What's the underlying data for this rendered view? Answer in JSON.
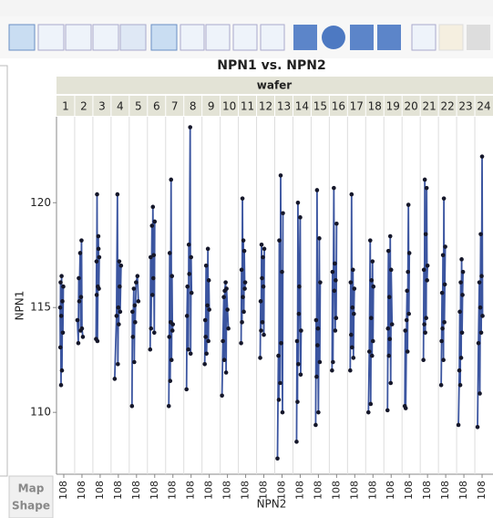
{
  "chart_data": {
    "type": "line",
    "title": "NPN1 vs. NPN2",
    "facet_label": "wafer",
    "x_label": "NPN2",
    "y_label": "NPN1",
    "side_panel": [
      "Map",
      "Shape"
    ],
    "line_color": "#3b55a0",
    "point_color": "#15172a",
    "ylim": [
      107.05,
      124.1
    ],
    "yticks": [
      110,
      115,
      120
    ],
    "xlim": [
      107.2,
      109.2
    ],
    "xticks": [
      108
    ],
    "panels": [
      {
        "name": "1",
        "x": [
          107.6,
          107.62,
          107.65,
          107.7,
          107.72,
          107.76,
          107.8,
          107.85,
          107.9,
          107.95
        ],
        "y": [
          115.0,
          113.1,
          116.2,
          111.3,
          114.6,
          116.5,
          112.0,
          115.3,
          113.8,
          116.0
        ]
      },
      {
        "name": "2",
        "x": [
          107.5,
          107.6,
          107.65,
          107.7,
          107.8,
          107.85,
          107.9,
          107.95,
          108.0,
          108.1
        ],
        "y": [
          114.4,
          113.3,
          116.4,
          115.3,
          117.6,
          113.9,
          115.5,
          118.2,
          114.0,
          113.6
        ]
      },
      {
        "name": "3",
        "x": [
          107.55,
          107.6,
          107.62,
          107.66,
          107.7,
          107.75,
          107.8,
          107.82,
          107.86,
          107.9
        ],
        "y": [
          113.5,
          117.2,
          115.6,
          120.4,
          113.4,
          116.0,
          118.4,
          117.8,
          115.9,
          117.4
        ]
      },
      {
        "name": "4",
        "x": [
          107.6,
          107.8,
          107.9,
          107.95,
          108.0,
          108.05,
          108.1,
          108.15,
          108.2,
          108.3
        ],
        "y": [
          111.6,
          114.6,
          120.4,
          112.3,
          115.0,
          114.2,
          117.2,
          116.0,
          114.8,
          117.0
        ]
      },
      {
        "name": "5",
        "x": [
          107.5,
          107.55,
          107.6,
          107.7,
          107.75,
          107.8,
          107.85,
          107.95,
          108.1,
          108.2
        ],
        "y": [
          110.3,
          114.8,
          113.6,
          115.9,
          112.4,
          115.1,
          114.3,
          116.2,
          116.5,
          115.3
        ]
      },
      {
        "name": "6",
        "x": [
          107.5,
          107.55,
          107.6,
          107.7,
          107.75,
          107.8,
          107.85,
          107.9,
          107.95,
          108.0
        ],
        "y": [
          113.0,
          117.4,
          114.0,
          118.9,
          115.6,
          119.8,
          116.4,
          117.5,
          113.8,
          119.1
        ]
      },
      {
        "name": "7",
        "x": [
          107.55,
          107.6,
          107.65,
          107.7,
          107.75,
          107.8,
          107.85,
          107.9,
          107.95,
          108.0
        ],
        "y": [
          110.3,
          113.6,
          117.6,
          111.5,
          114.3,
          121.1,
          112.5,
          116.5,
          113.9,
          114.2
        ]
      },
      {
        "name": "8",
        "x": [
          107.5,
          107.55,
          107.6,
          107.7,
          107.75,
          107.8,
          107.9,
          107.95,
          108.0,
          108.05
        ],
        "y": [
          111.1,
          114.6,
          116.0,
          113.0,
          118.0,
          116.6,
          123.6,
          112.8,
          117.4,
          115.7
        ]
      },
      {
        "name": "9",
        "x": [
          107.5,
          107.55,
          107.6,
          107.65,
          107.7,
          107.8,
          107.85,
          107.9,
          107.95,
          108.0
        ],
        "y": [
          112.3,
          114.4,
          113.6,
          117.0,
          112.8,
          115.1,
          117.8,
          113.4,
          116.3,
          114.9
        ]
      },
      {
        "name": "10",
        "x": [
          107.4,
          107.5,
          107.6,
          107.65,
          107.7,
          107.8,
          107.85,
          107.9,
          108.0,
          108.1
        ],
        "y": [
          110.8,
          113.4,
          115.5,
          112.5,
          115.8,
          116.2,
          111.9,
          115.9,
          114.9,
          114.0
        ]
      },
      {
        "name": "11",
        "x": [
          107.5,
          107.55,
          107.6,
          107.65,
          107.7,
          107.75,
          107.8,
          107.85,
          107.9,
          107.95
        ],
        "y": [
          113.3,
          116.8,
          114.3,
          120.2,
          115.5,
          118.2,
          114.8,
          117.7,
          115.9,
          116.2
        ]
      },
      {
        "name": "12",
        "x": [
          107.6,
          107.65,
          107.7,
          107.75,
          107.8,
          107.85,
          107.9,
          107.95,
          108.0,
          108.05
        ],
        "y": [
          112.6,
          115.3,
          113.9,
          118.0,
          116.4,
          114.3,
          117.4,
          116.0,
          113.7,
          117.8
        ]
      },
      {
        "name": "13",
        "x": [
          107.5,
          107.6,
          107.65,
          107.7,
          107.8,
          107.85,
          107.9,
          108.0,
          108.05,
          108.1
        ],
        "y": [
          107.8,
          112.7,
          110.6,
          118.2,
          111.4,
          121.3,
          113.3,
          116.7,
          110.0,
          119.5
        ]
      },
      {
        "name": "14",
        "x": [
          107.6,
          107.65,
          107.7,
          107.75,
          107.8,
          107.85,
          107.9,
          108.0,
          108.05,
          108.1
        ],
        "y": [
          108.6,
          113.4,
          110.5,
          120.0,
          112.3,
          114.7,
          116.0,
          119.3,
          111.8,
          113.9
        ]
      },
      {
        "name": "15",
        "x": [
          107.7,
          107.75,
          107.8,
          107.85,
          107.9,
          107.95,
          108.0,
          108.1,
          108.15,
          108.2
        ],
        "y": [
          109.4,
          114.4,
          111.7,
          120.6,
          113.2,
          114.0,
          110.0,
          118.3,
          112.4,
          116.2
        ]
      },
      {
        "name": "16",
        "x": [
          107.5,
          107.55,
          107.6,
          107.7,
          107.75,
          107.8,
          107.85,
          107.9,
          107.95,
          108.0
        ],
        "y": [
          112.0,
          116.7,
          112.4,
          120.7,
          115.8,
          117.1,
          113.9,
          116.3,
          114.5,
          119.0
        ]
      },
      {
        "name": "17",
        "x": [
          107.5,
          107.55,
          107.6,
          107.65,
          107.7,
          107.75,
          107.8,
          107.85,
          107.9,
          107.95
        ],
        "y": [
          112.0,
          116.2,
          113.7,
          120.4,
          113.1,
          115.0,
          116.8,
          112.6,
          114.7,
          115.9
        ]
      },
      {
        "name": "18",
        "x": [
          107.5,
          107.6,
          107.7,
          107.75,
          107.8,
          107.85,
          107.9,
          107.95,
          108.0,
          108.05
        ],
        "y": [
          110.0,
          112.9,
          118.2,
          110.4,
          114.5,
          116.3,
          112.7,
          117.2,
          113.4,
          116.0
        ]
      },
      {
        "name": "19",
        "x": [
          107.6,
          107.65,
          107.7,
          107.75,
          107.8,
          107.85,
          107.9,
          107.95,
          108.0,
          108.1
        ],
        "y": [
          110.1,
          114.0,
          117.7,
          112.7,
          115.5,
          113.5,
          118.4,
          111.4,
          116.8,
          114.2
        ]
      },
      {
        "name": "20",
        "x": [
          107.5,
          107.55,
          107.6,
          107.7,
          107.75,
          107.8,
          107.85,
          107.9,
          107.95,
          108.0
        ],
        "y": [
          110.3,
          113.9,
          110.2,
          114.4,
          115.8,
          112.9,
          116.7,
          119.9,
          114.7,
          117.6
        ]
      },
      {
        "name": "21",
        "x": [
          107.55,
          107.6,
          107.65,
          107.7,
          107.75,
          107.8,
          107.85,
          107.9,
          107.95,
          108.0
        ],
        "y": [
          112.5,
          116.8,
          114.2,
          121.1,
          113.8,
          118.5,
          114.5,
          120.7,
          116.3,
          117.0
        ]
      },
      {
        "name": "22",
        "x": [
          107.5,
          107.55,
          107.6,
          107.65,
          107.7,
          107.75,
          107.8,
          107.85,
          107.9,
          107.95
        ],
        "y": [
          111.3,
          113.4,
          115.7,
          114.0,
          117.5,
          112.5,
          120.2,
          114.3,
          116.1,
          117.9
        ]
      },
      {
        "name": "23",
        "x": [
          107.4,
          107.5,
          107.55,
          107.6,
          107.65,
          107.7,
          107.75,
          107.8,
          107.85,
          107.9
        ],
        "y": [
          109.4,
          112.0,
          114.8,
          111.3,
          116.2,
          112.6,
          117.3,
          113.8,
          115.6,
          116.7
        ]
      },
      {
        "name": "24",
        "x": [
          107.5,
          107.6,
          107.7,
          107.75,
          107.8,
          107.85,
          107.9,
          107.95,
          108.0,
          108.05
        ],
        "y": [
          109.3,
          113.3,
          116.2,
          110.9,
          115.0,
          118.5,
          113.8,
          116.5,
          122.2,
          114.6
        ]
      }
    ]
  }
}
